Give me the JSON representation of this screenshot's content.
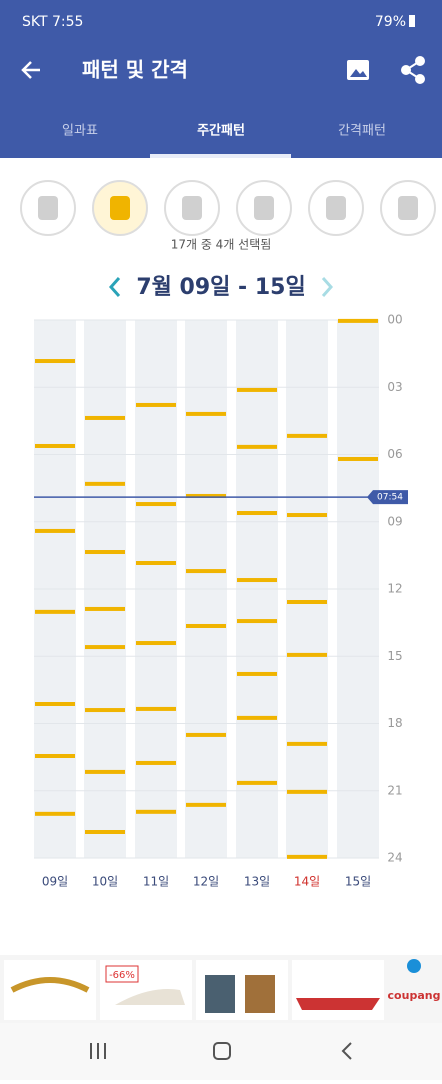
{
  "status_bar": {
    "left": "SKT 7:55",
    "battery": "79%"
  },
  "header": {
    "title": "패턴 및 간격",
    "tabs": [
      "일과표",
      "주간패턴",
      "간격패턴"
    ],
    "active_tab": 1
  },
  "selection_text": "17개 중 4개 선택됨",
  "date_range": "7월 09일 - 15일",
  "chart_data": {
    "type": "event_timeline",
    "categories": [
      "09일",
      "10일",
      "11일",
      "12일",
      "13일",
      "14일",
      "15일"
    ],
    "category_label_colors": [
      "#3a4a7a",
      "#3a4a7a",
      "#3a4a7a",
      "#3a4a7a",
      "#3a4a7a",
      "#d0312d",
      "#3a4a7a"
    ],
    "events": [
      [
        1.83,
        5.62,
        9.41,
        13.02,
        17.13,
        19.45,
        22.03
      ],
      [
        4.37,
        7.31,
        10.35,
        12.89,
        14.59,
        17.4,
        20.16,
        22.84
      ],
      [
        3.79,
        8.21,
        10.84,
        14.41,
        17.35,
        19.76,
        21.94
      ],
      [
        4.19,
        7.85,
        11.2,
        13.65,
        18.51,
        21.63
      ],
      [
        3.12,
        5.66,
        8.61,
        11.6,
        13.43,
        15.79,
        17.75,
        20.65
      ],
      [
        5.17,
        8.7,
        12.58,
        14.94,
        18.91,
        21.05,
        23.95
      ],
      [
        0.04,
        6.2
      ]
    ],
    "color": "#f0b400",
    "ylim": [
      0,
      24
    ],
    "yticks": [
      {
        "value": 0,
        "label": "00"
      },
      {
        "value": 3,
        "label": "03"
      },
      {
        "value": 6,
        "label": "06"
      },
      {
        "value": 9,
        "label": "09"
      },
      {
        "value": 12,
        "label": "12"
      },
      {
        "value": 15,
        "label": "15"
      },
      {
        "value": 18,
        "label": "18"
      },
      {
        "value": 21,
        "label": "21"
      },
      {
        "value": 24,
        "label": "24"
      }
    ],
    "grid": true,
    "now": {
      "value": 7.9,
      "label": "07:54"
    },
    "now_color": "#3f5aa8"
  },
  "ad": {
    "discount": "-66%",
    "brand": "coupang"
  }
}
